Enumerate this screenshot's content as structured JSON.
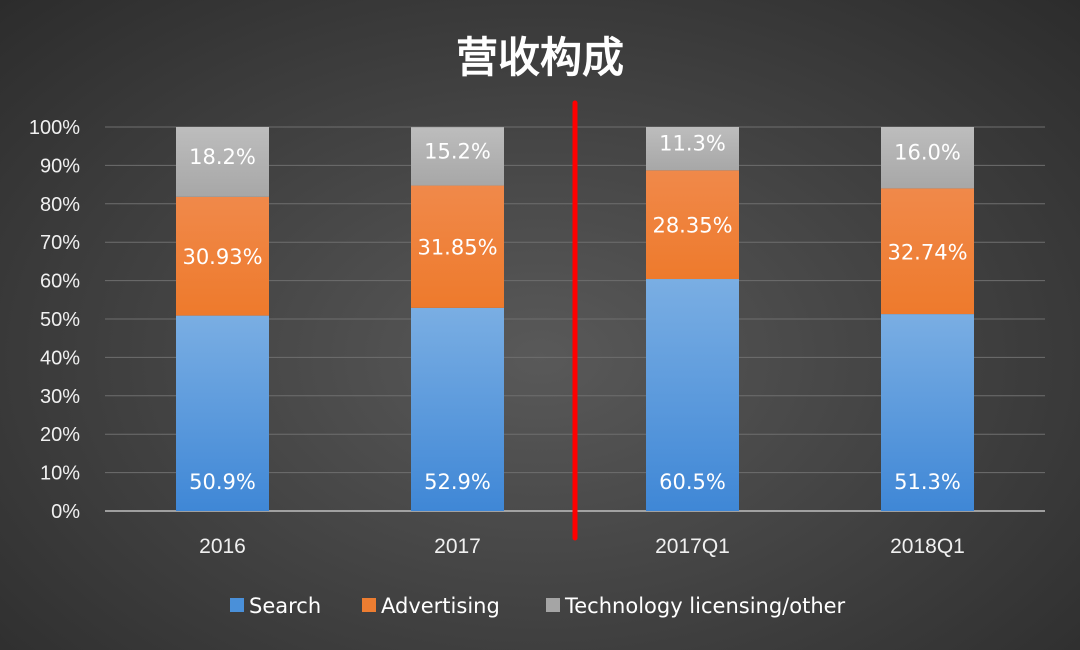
{
  "chart_data": {
    "type": "bar",
    "stacked": true,
    "title": "营收构成",
    "categories": [
      "2016",
      "2017",
      "2017Q1",
      "2018Q1"
    ],
    "series": [
      {
        "name": "Search",
        "values": [
          50.9,
          52.9,
          60.5,
          51.3
        ],
        "labels": [
          "50.9%",
          "52.9%",
          "60.5%",
          "51.3%"
        ],
        "color": "#4a90d9"
      },
      {
        "name": "Advertising",
        "values": [
          30.93,
          31.85,
          28.35,
          32.74
        ],
        "labels": [
          "30.93%",
          "31.85%",
          "28.35%",
          "32.74%"
        ],
        "color": "#ed7d31"
      },
      {
        "name": "Technology licensing/other",
        "values": [
          18.2,
          15.2,
          11.3,
          16.0
        ],
        "labels": [
          "18.2%",
          "15.2%",
          "11.3%",
          "16.0%"
        ],
        "color": "#a5a5a5"
      }
    ],
    "y_ticks": [
      "0%",
      "10%",
      "20%",
      "30%",
      "40%",
      "50%",
      "60%",
      "70%",
      "80%",
      "90%",
      "100%"
    ],
    "ylim": [
      0,
      100
    ],
    "grid": true,
    "legend_position": "bottom",
    "divider_line_color": "#ff0000"
  }
}
